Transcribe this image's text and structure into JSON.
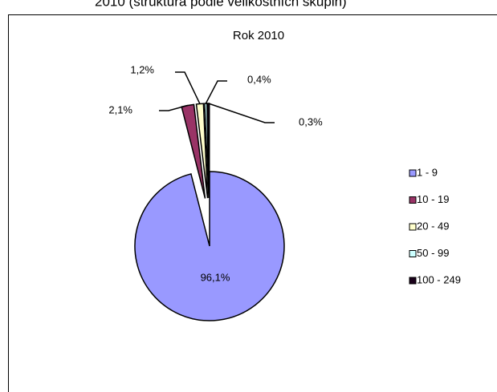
{
  "caption": "2010 (struktura podle velikostních skupin)",
  "chart_data": {
    "type": "pie",
    "title": "Rok 2010",
    "categories": [
      "1 - 9",
      "10 - 19",
      "20 - 49",
      "50 - 99",
      "100 - 249"
    ],
    "values": [
      96.1,
      2.1,
      1.2,
      0.4,
      0.3
    ],
    "value_labels": [
      "96,1%",
      "2,1%",
      "1,2%",
      "0,4%",
      "0,3%"
    ],
    "colors": [
      "#9999ff",
      "#993366",
      "#ffffcc",
      "#ccffff",
      "#1a001a"
    ],
    "legend": "right"
  }
}
